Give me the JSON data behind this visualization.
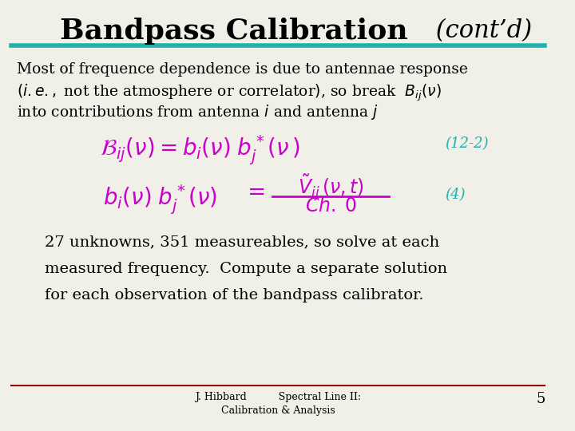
{
  "title_main": "Bandpass Calibration",
  "title_italic": " (cont’d)",
  "title_color_main": "#000000",
  "underline_color": "#20B2AA",
  "background_color": "#F0F0E8",
  "body_text_color": "#000000",
  "eq_color": "#CC00CC",
  "eq_label_color": "#20B2AA",
  "bottom_text_lines": [
    "27 unknowns, 351 measureables, so solve at each",
    "measured frequency.  Compute a separate solution",
    "for each observation of the bandpass calibrator."
  ],
  "footer_center_line1": "J. Hibbard          Spectral Line II:",
  "footer_center_line2": "Calibration & Analysis",
  "footer_page": "5",
  "footer_line_color": "#8B0000",
  "figsize": [
    7.2,
    5.4
  ],
  "dpi": 100
}
